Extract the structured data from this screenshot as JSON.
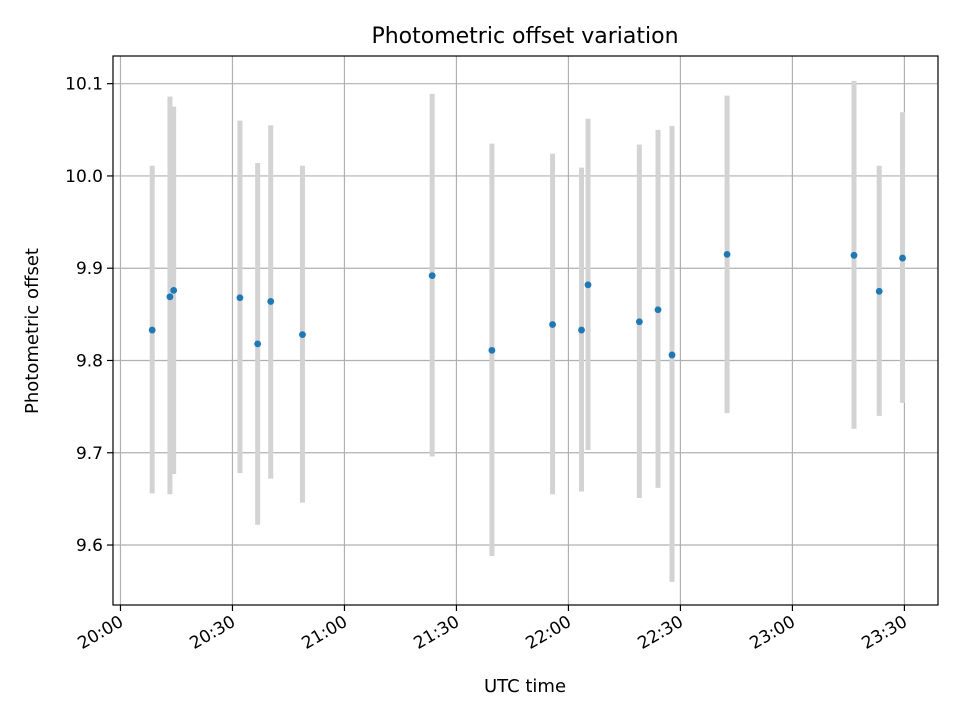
{
  "chart_data": {
    "type": "scatter",
    "title": "Photometric offset variation",
    "xlabel": "UTC time",
    "ylabel": "Photometric offset",
    "grid": true,
    "xlim": [
      "19:58",
      "23:39"
    ],
    "ylim": [
      9.535,
      10.13
    ],
    "xticks": [
      "20:00",
      "20:30",
      "21:00",
      "21:30",
      "22:00",
      "22:30",
      "23:00",
      "23:30"
    ],
    "yticks": [
      9.6,
      9.7,
      9.8,
      9.9,
      10.0,
      10.1
    ],
    "ytick_labels": [
      "9.6",
      "9.7",
      "9.8",
      "9.9",
      "10.0",
      "10.1"
    ],
    "marker_color": "#1f77b4",
    "errorbar_color": "#d3d3d3",
    "points": [
      {
        "x": "20:08:30",
        "y": 9.833,
        "ylow": 9.656,
        "yhigh": 10.011
      },
      {
        "x": "20:13:15",
        "y": 9.869,
        "ylow": 9.655,
        "yhigh": 10.086
      },
      {
        "x": "20:14:15",
        "y": 9.876,
        "ylow": 9.677,
        "yhigh": 10.075
      },
      {
        "x": "20:32:00",
        "y": 9.868,
        "ylow": 9.678,
        "yhigh": 10.06
      },
      {
        "x": "20:36:45",
        "y": 9.818,
        "ylow": 9.622,
        "yhigh": 10.014
      },
      {
        "x": "20:40:15",
        "y": 9.864,
        "ylow": 9.672,
        "yhigh": 10.055
      },
      {
        "x": "20:48:45",
        "y": 9.828,
        "ylow": 9.646,
        "yhigh": 10.011
      },
      {
        "x": "21:23:30",
        "y": 9.892,
        "ylow": 9.696,
        "yhigh": 10.089
      },
      {
        "x": "21:39:30",
        "y": 9.811,
        "ylow": 9.588,
        "yhigh": 10.035
      },
      {
        "x": "21:55:45",
        "y": 9.839,
        "ylow": 9.655,
        "yhigh": 10.024
      },
      {
        "x": "22:03:30",
        "y": 9.833,
        "ylow": 9.658,
        "yhigh": 10.009
      },
      {
        "x": "22:05:15",
        "y": 9.882,
        "ylow": 9.703,
        "yhigh": 10.062
      },
      {
        "x": "22:19:00",
        "y": 9.842,
        "ylow": 9.651,
        "yhigh": 10.034
      },
      {
        "x": "22:24:00",
        "y": 9.855,
        "ylow": 9.662,
        "yhigh": 10.05
      },
      {
        "x": "22:27:45",
        "y": 9.806,
        "ylow": 9.56,
        "yhigh": 10.054
      },
      {
        "x": "22:42:30",
        "y": 9.915,
        "ylow": 9.743,
        "yhigh": 10.087
      },
      {
        "x": "23:16:30",
        "y": 9.914,
        "ylow": 9.726,
        "yhigh": 10.103
      },
      {
        "x": "23:23:15",
        "y": 9.875,
        "ylow": 9.74,
        "yhigh": 10.011
      },
      {
        "x": "23:29:30",
        "y": 9.911,
        "ylow": 9.754,
        "yhigh": 10.069
      }
    ]
  }
}
